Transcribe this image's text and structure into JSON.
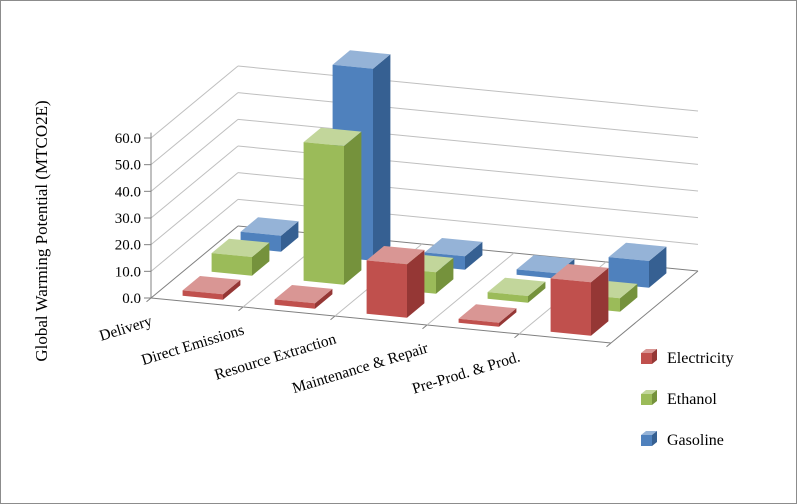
{
  "chart_data": {
    "type": "bar",
    "subtype": "3d-clustered-column",
    "title": "",
    "ylabel": "Global Warming Potential (MTCO2E)",
    "ylim": [
      0,
      60
    ],
    "ytick_step": 10,
    "ytick_labels": [
      "0.0",
      "10.0",
      "20.0",
      "30.0",
      "40.0",
      "50.0",
      "60.0"
    ],
    "grid": true,
    "legend_position": "right",
    "categories": [
      "Delivery",
      "Direct Emissions",
      "Resource Extraction",
      "Maintenance & Repair",
      "Pre-Prod. & Prod."
    ],
    "series": [
      {
        "name": "Electricity",
        "color": "#C0504D",
        "color_top": "#D99694",
        "color_side": "#953735",
        "values": [
          2.0,
          2.0,
          20.0,
          1.5,
          20.0
        ]
      },
      {
        "name": "Ethanol",
        "color": "#9BBB59",
        "color_top": "#C2D69B",
        "color_side": "#75923C",
        "values": [
          7.0,
          52.0,
          8.0,
          2.5,
          5.0
        ]
      },
      {
        "name": "Gasoline",
        "color": "#4F81BD",
        "color_top": "#95B3D7",
        "color_side": "#366092",
        "values": [
          6.0,
          72.0,
          5.0,
          2.0,
          10.0
        ]
      }
    ],
    "colors": {
      "grid": "#BFBFBF",
      "axis": "#808080",
      "text": "#000000",
      "background": "#FFFFFF"
    }
  }
}
